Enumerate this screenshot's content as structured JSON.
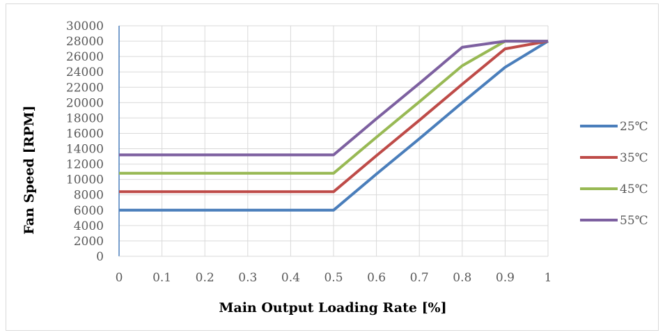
{
  "chart_data": {
    "type": "line",
    "title": "",
    "xlabel": "Main Output Loading Rate [%]",
    "ylabel": "Fan Speed [RPM]",
    "x": [
      0,
      0.5,
      0.6,
      0.7,
      0.8,
      0.9,
      1
    ],
    "x_ticks": [
      "0",
      "0.1",
      "0.2",
      "0.3",
      "0.4",
      "0.5",
      "0.6",
      "0.7",
      "0.8",
      "0.9",
      "1"
    ],
    "y_ticks": [
      "0",
      "2000",
      "4000",
      "6000",
      "8000",
      "10000",
      "12000",
      "14000",
      "16000",
      "18000",
      "20000",
      "22000",
      "24000",
      "26000",
      "28000",
      "30000"
    ],
    "xlim": [
      0,
      1
    ],
    "ylim": [
      0,
      30000
    ],
    "grid": true,
    "legend_position": "right",
    "series": [
      {
        "name": "25℃",
        "color": "#4a7ebb",
        "x": [
          0,
          0.5,
          0.6,
          0.7,
          0.8,
          0.9,
          1
        ],
        "values": [
          6000,
          6000,
          10700,
          15300,
          20000,
          24600,
          28000
        ]
      },
      {
        "name": "35℃",
        "color": "#be4b48",
        "x": [
          0,
          0.5,
          0.6,
          0.7,
          0.8,
          0.9,
          1
        ],
        "values": [
          8400,
          8400,
          13100,
          17700,
          22400,
          27000,
          28000
        ]
      },
      {
        "name": "45℃",
        "color": "#98b954",
        "x": [
          0,
          0.5,
          0.6,
          0.7,
          0.8,
          0.9,
          1
        ],
        "values": [
          10800,
          10800,
          15500,
          20100,
          24800,
          28000,
          28000
        ]
      },
      {
        "name": "55℃",
        "color": "#7d60a0",
        "x": [
          0,
          0.5,
          0.6,
          0.7,
          0.8,
          0.9,
          1
        ],
        "values": [
          13200,
          13200,
          17900,
          22500,
          27200,
          28000,
          28000
        ]
      }
    ]
  }
}
